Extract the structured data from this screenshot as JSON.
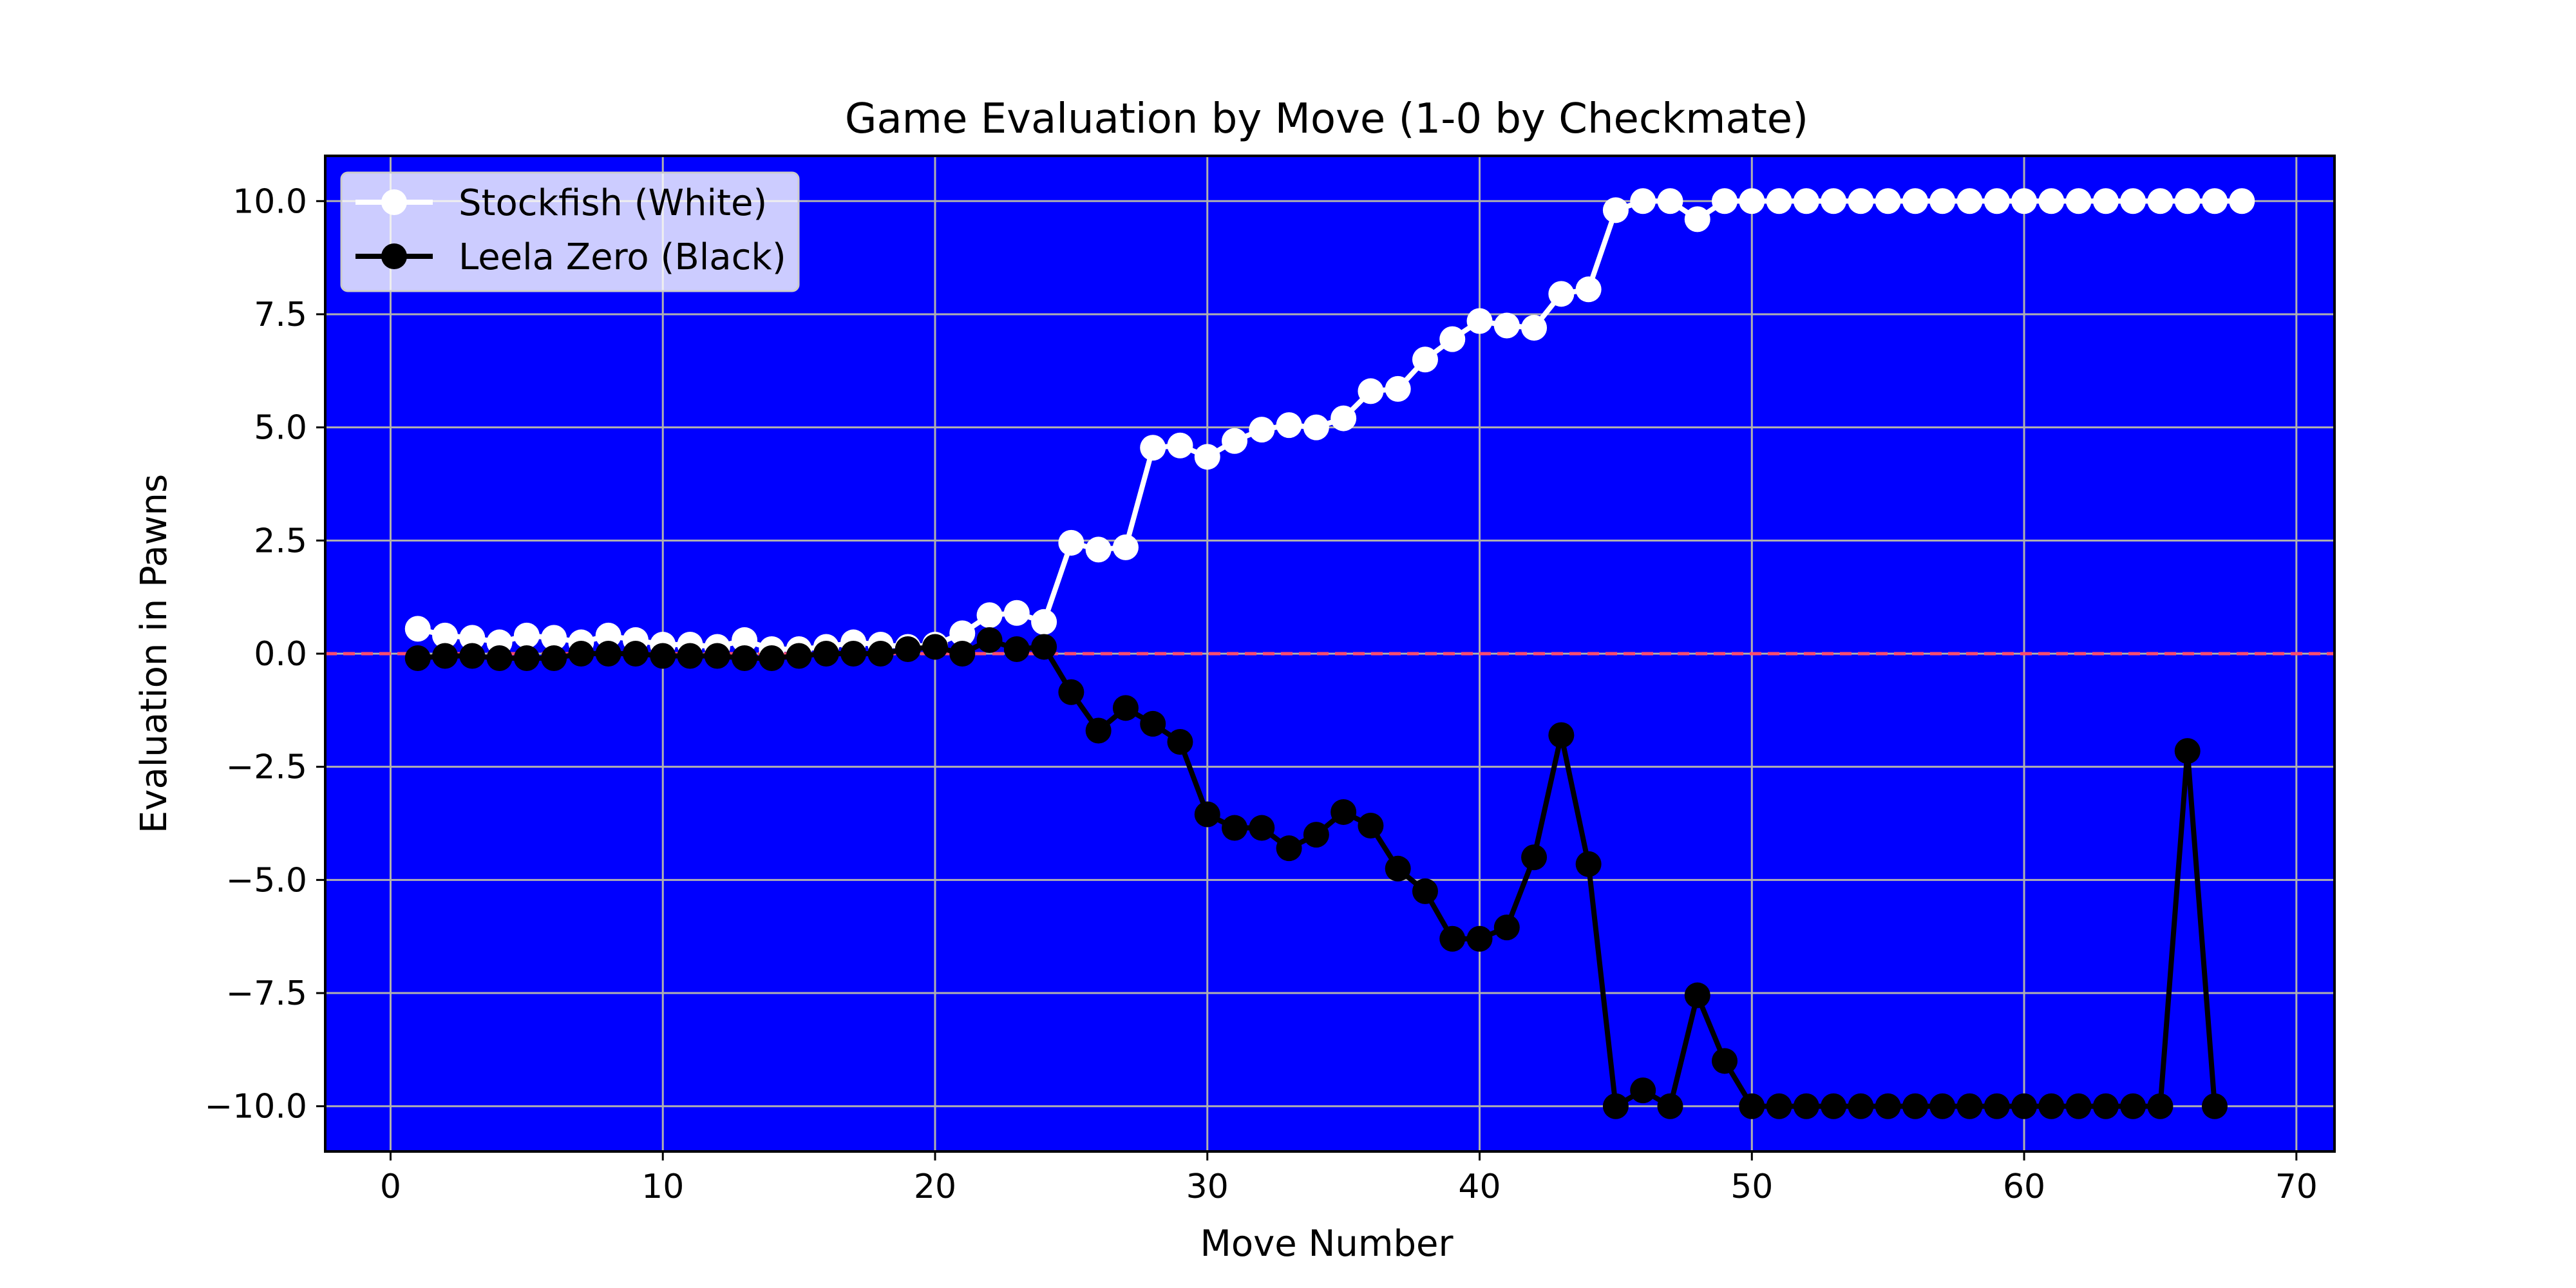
{
  "chart_data": {
    "type": "line",
    "title": "Game Evaluation by Move (1-0 by Checkmate)",
    "xlabel": "Move Number",
    "ylabel": "Evaluation in Pawns",
    "xlim": [
      -2.4,
      71.4
    ],
    "ylim": [
      -11,
      11
    ],
    "xticks": [
      0,
      10,
      20,
      30,
      40,
      50,
      60,
      70
    ],
    "yticks": [
      -10.0,
      -7.5,
      -5.0,
      -2.5,
      0.0,
      2.5,
      5.0,
      7.5,
      10.0
    ],
    "xtick_labels": [
      "0",
      "10",
      "20",
      "30",
      "40",
      "50",
      "60",
      "70"
    ],
    "ytick_labels": [
      "−10.0",
      "−7.5",
      "−5.0",
      "−2.5",
      "0.0",
      "2.5",
      "5.0",
      "7.5",
      "10.0"
    ],
    "grid": true,
    "legend_position": "top-left",
    "background_color": "#0000ff",
    "reference_line": {
      "y": 0,
      "color": "#ff4d6d",
      "style": "dashed"
    },
    "series": [
      {
        "name": "Stockfish (White)",
        "color": "#ffffff",
        "marker": "circle",
        "x": [
          1,
          2,
          3,
          4,
          5,
          6,
          7,
          8,
          9,
          10,
          11,
          12,
          13,
          14,
          15,
          16,
          17,
          18,
          19,
          20,
          21,
          22,
          23,
          24,
          25,
          26,
          27,
          28,
          29,
          30,
          31,
          32,
          33,
          34,
          35,
          36,
          37,
          38,
          39,
          40,
          41,
          42,
          43,
          44,
          45,
          46,
          47,
          48,
          49,
          50,
          51,
          52,
          53,
          54,
          55,
          56,
          57,
          58,
          59,
          60,
          61,
          62,
          63,
          64,
          65,
          66,
          67,
          68
        ],
        "values": [
          0.55,
          0.4,
          0.35,
          0.25,
          0.4,
          0.35,
          0.25,
          0.4,
          0.3,
          0.2,
          0.2,
          0.15,
          0.3,
          0.1,
          0.1,
          0.15,
          0.25,
          0.2,
          0.15,
          0.2,
          0.45,
          0.85,
          0.9,
          0.7,
          2.45,
          2.3,
          2.35,
          4.55,
          4.6,
          4.35,
          4.7,
          4.95,
          5.05,
          5.0,
          5.2,
          5.8,
          5.85,
          6.5,
          6.95,
          7.35,
          7.25,
          7.2,
          7.95,
          8.05,
          9.8,
          10.0,
          10.0,
          9.6,
          10.0,
          10.0,
          10.0,
          10.0,
          10.0,
          10.0,
          10.0,
          10.0,
          10.0,
          10.0,
          10.0,
          10.0,
          10.0,
          10.0,
          10.0,
          10.0,
          10.0,
          10.0,
          10.0,
          10.0
        ]
      },
      {
        "name": "Leela Zero (Black)",
        "color": "#000000",
        "marker": "circle",
        "x": [
          1,
          2,
          3,
          4,
          5,
          6,
          7,
          8,
          9,
          10,
          11,
          12,
          13,
          14,
          15,
          16,
          17,
          18,
          19,
          20,
          21,
          22,
          23,
          24,
          25,
          26,
          27,
          28,
          29,
          30,
          31,
          32,
          33,
          34,
          35,
          36,
          37,
          38,
          39,
          40,
          41,
          42,
          43,
          44,
          45,
          46,
          47,
          48,
          49,
          50,
          51,
          52,
          53,
          54,
          55,
          56,
          57,
          58,
          59,
          60,
          61,
          62,
          63,
          64,
          65,
          66,
          67
        ],
        "values": [
          -0.1,
          -0.05,
          -0.05,
          -0.1,
          -0.1,
          -0.1,
          0.0,
          0.0,
          0.0,
          -0.05,
          -0.05,
          -0.05,
          -0.1,
          -0.1,
          -0.05,
          0.0,
          0.0,
          0.0,
          0.1,
          0.15,
          0.0,
          0.3,
          0.1,
          0.15,
          -0.85,
          -1.7,
          -1.2,
          -1.55,
          -1.95,
          -3.55,
          -3.85,
          -3.85,
          -4.3,
          -4.0,
          -3.5,
          -3.8,
          -4.75,
          -5.25,
          -6.3,
          -6.3,
          -6.05,
          -4.5,
          -1.8,
          -4.65,
          -10.0,
          -9.65,
          -10.0,
          -7.55,
          -9.0,
          -10.0,
          -10.0,
          -10.0,
          -10.0,
          -10.0,
          -10.0,
          -10.0,
          -10.0,
          -10.0,
          -10.0,
          -10.0,
          -10.0,
          -10.0,
          -10.0,
          -10.0,
          -10.0,
          -2.15,
          -10.0
        ]
      }
    ]
  }
}
